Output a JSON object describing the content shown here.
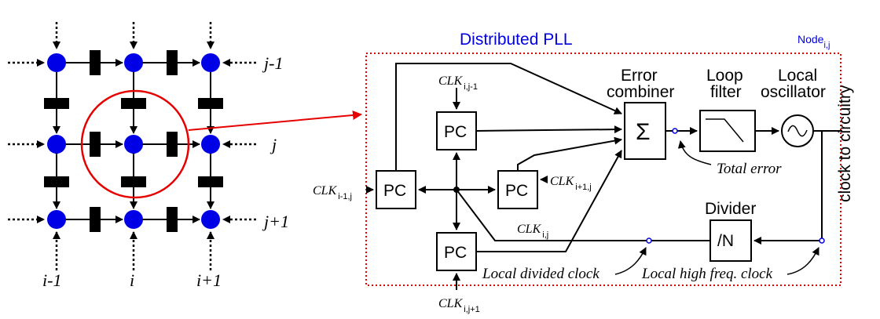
{
  "pll_title": "Distributed PLL",
  "node_label": "Node",
  "node_sub": "i,j",
  "grid": {
    "row_labels": [
      "j-1",
      "j",
      "j+1"
    ],
    "col_labels": [
      "i-1",
      "i",
      "i+1"
    ]
  },
  "blocks": {
    "pc": "PC",
    "sigma": "Σ",
    "divider_symbol": "/N",
    "oscillator_symbol": "~"
  },
  "labels": {
    "error_combiner_line1": "Error",
    "error_combiner_line2": "combiner",
    "loop_filter_line1": "Loop",
    "loop_filter_line2": "filter",
    "local_osc_line1": "Local",
    "local_osc_line2": "oscillator",
    "divider": "Divider",
    "clock_to_circuitry": "clock to circuitry",
    "total_error": "Total error",
    "local_divided_clock": "Local divided clock",
    "local_high_freq_clock": "Local high freq. clock"
  },
  "clk_inputs": {
    "base": "CLK",
    "top_sub": "i,j-1",
    "right_sub": "i+1,j",
    "left_sub": "i-1,j",
    "bottom_sub": "i,j+1",
    "local_sub": "i,j"
  },
  "colors": {
    "node_blue": "#0000e6",
    "title_blue": "#0000e6",
    "highlight_red": "#e60000"
  }
}
